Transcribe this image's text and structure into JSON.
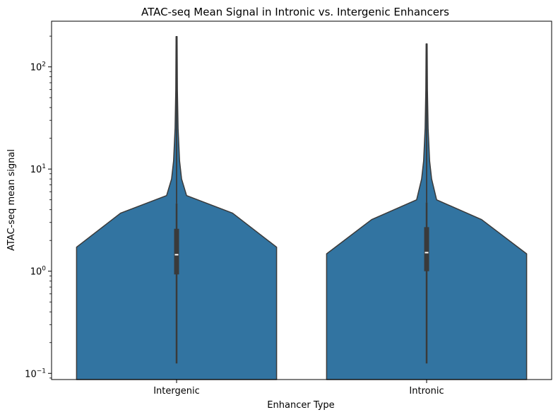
{
  "chart_data": {
    "type": "violin",
    "title": "ATAC-seq Mean Signal in Intronic vs. Intergenic Enhancers",
    "xlabel": "Enhancer Type",
    "ylabel": "ATAC-seq mean signal",
    "yscale": "log",
    "ylim": [
      0.087,
      280
    ],
    "yticks": [
      {
        "value": 0.1,
        "base": "10",
        "exp": "−1"
      },
      {
        "value": 1,
        "base": "10",
        "exp": "0"
      },
      {
        "value": 10,
        "base": "10",
        "exp": "1"
      },
      {
        "value": 100,
        "base": "10",
        "exp": "2"
      }
    ],
    "categories": [
      "Intergenic",
      "Intronic"
    ],
    "grid": false,
    "colors": {
      "violin": "#3274a1",
      "edge": "#3a3a3a",
      "box": "#3a3a3a",
      "median": "#ffffff"
    },
    "violins": [
      {
        "category": "Intergenic",
        "profile": [
          [
            0.087,
            1.0
          ],
          [
            1.72,
            1.0
          ],
          [
            3.7,
            0.56
          ],
          [
            5.5,
            0.1
          ],
          [
            8,
            0.05
          ],
          [
            12,
            0.03
          ],
          [
            25,
            0.015
          ],
          [
            60,
            0.008
          ],
          [
            198,
            0.005
          ]
        ],
        "whisker_low": 0.125,
        "q1": 0.93,
        "median": 1.45,
        "q3": 2.6,
        "whisker_high": 4.6,
        "max": 198
      },
      {
        "category": "Intronic",
        "profile": [
          [
            0.087,
            1.0
          ],
          [
            1.48,
            1.0
          ],
          [
            3.2,
            0.55
          ],
          [
            5.0,
            0.1
          ],
          [
            8,
            0.05
          ],
          [
            12,
            0.03
          ],
          [
            25,
            0.015
          ],
          [
            60,
            0.008
          ],
          [
            168,
            0.005
          ]
        ],
        "whisker_low": 0.125,
        "q1": 1.0,
        "median": 1.52,
        "q3": 2.7,
        "whisker_high": 4.7,
        "max": 168
      }
    ]
  }
}
